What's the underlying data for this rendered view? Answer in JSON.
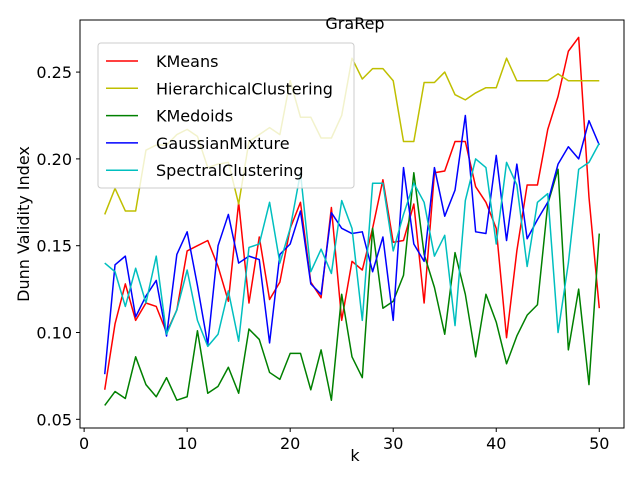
{
  "chart_data": {
    "type": "line",
    "title": "GraRep",
    "xlabel": "k",
    "ylabel": "Dunn Validity Index",
    "xlim": [
      -0.4,
      52.4
    ],
    "ylim": [
      0.045,
      0.28
    ],
    "xticks": [
      0,
      10,
      20,
      30,
      40,
      50
    ],
    "yticks": [
      0.05,
      0.1,
      0.15,
      0.2,
      0.25
    ],
    "ytick_labels": [
      "0.05",
      "0.10",
      "0.15",
      "0.20",
      "0.25"
    ],
    "legend_position": "top-left",
    "grid": false,
    "x": [
      2,
      3,
      4,
      5,
      6,
      7,
      8,
      9,
      10,
      11,
      12,
      13,
      14,
      15,
      16,
      17,
      18,
      19,
      20,
      21,
      22,
      23,
      24,
      25,
      26,
      27,
      28,
      29,
      30,
      31,
      32,
      33,
      34,
      35,
      36,
      37,
      38,
      39,
      40,
      41,
      42,
      43,
      44,
      45,
      46,
      47,
      48,
      49,
      50
    ],
    "series": [
      {
        "name": "KMeans",
        "color": "#ff0000",
        "values": [
          0.067,
          0.105,
          0.128,
          0.107,
          0.117,
          0.115,
          0.1,
          0.113,
          0.147,
          0.15,
          0.153,
          0.138,
          0.118,
          0.175,
          0.117,
          0.155,
          0.119,
          0.129,
          0.16,
          0.175,
          0.129,
          0.12,
          0.172,
          0.107,
          0.141,
          0.136,
          0.16,
          0.188,
          0.152,
          0.153,
          0.174,
          0.117,
          0.192,
          0.193,
          0.21,
          0.21,
          0.184,
          0.175,
          0.16,
          0.097,
          0.147,
          0.185,
          0.185,
          0.217,
          0.236,
          0.262,
          0.27,
          0.178,
          0.114
        ]
      },
      {
        "name": "HierarchicalClustering",
        "color": "#bfbf00",
        "values": [
          0.168,
          0.183,
          0.17,
          0.17,
          0.205,
          0.208,
          0.208,
          0.214,
          0.217,
          0.213,
          0.195,
          0.197,
          0.198,
          0.174,
          0.21,
          0.214,
          0.218,
          0.214,
          0.245,
          0.224,
          0.224,
          0.212,
          0.212,
          0.225,
          0.258,
          0.246,
          0.252,
          0.252,
          0.245,
          0.21,
          0.21,
          0.244,
          0.244,
          0.25,
          0.237,
          0.234,
          0.238,
          0.241,
          0.241,
          0.258,
          0.245,
          0.245,
          0.245,
          0.245,
          0.249,
          0.245,
          0.245,
          0.245,
          0.245
        ]
      },
      {
        "name": "KMedoids",
        "color": "#008000",
        "values": [
          0.058,
          0.066,
          0.062,
          0.086,
          0.07,
          0.063,
          0.074,
          0.061,
          0.063,
          0.101,
          0.065,
          0.069,
          0.08,
          0.065,
          0.102,
          0.096,
          0.077,
          0.073,
          0.088,
          0.088,
          0.067,
          0.09,
          0.061,
          0.122,
          0.086,
          0.074,
          0.16,
          0.114,
          0.118,
          0.133,
          0.192,
          0.145,
          0.126,
          0.099,
          0.146,
          0.122,
          0.086,
          0.122,
          0.106,
          0.082,
          0.098,
          0.11,
          0.116,
          0.174,
          0.194,
          0.09,
          0.125,
          0.07,
          0.157
        ]
      },
      {
        "name": "GaussianMixture",
        "color": "#0000ff",
        "values": [
          0.076,
          0.139,
          0.144,
          0.109,
          0.121,
          0.13,
          0.098,
          0.145,
          0.158,
          0.127,
          0.093,
          0.15,
          0.168,
          0.14,
          0.144,
          0.142,
          0.094,
          0.145,
          0.151,
          0.17,
          0.128,
          0.122,
          0.169,
          0.16,
          0.157,
          0.158,
          0.135,
          0.155,
          0.107,
          0.195,
          0.151,
          0.141,
          0.195,
          0.167,
          0.182,
          0.225,
          0.158,
          0.157,
          0.202,
          0.153,
          0.197,
          0.154,
          0.165,
          0.175,
          0.197,
          0.207,
          0.2,
          0.222,
          0.208
        ]
      },
      {
        "name": "SpectralClustering",
        "color": "#00bfbf",
        "values": [
          0.14,
          0.135,
          0.115,
          0.137,
          0.117,
          0.144,
          0.099,
          0.113,
          0.136,
          0.107,
          0.092,
          0.099,
          0.124,
          0.095,
          0.149,
          0.151,
          0.175,
          0.14,
          0.16,
          0.192,
          0.135,
          0.148,
          0.134,
          0.176,
          0.16,
          0.107,
          0.186,
          0.186,
          0.147,
          0.168,
          0.186,
          0.175,
          0.144,
          0.156,
          0.104,
          0.176,
          0.2,
          0.195,
          0.151,
          0.198,
          0.185,
          0.138,
          0.175,
          0.18,
          0.1,
          0.14,
          0.194,
          0.198,
          0.209
        ]
      }
    ]
  }
}
